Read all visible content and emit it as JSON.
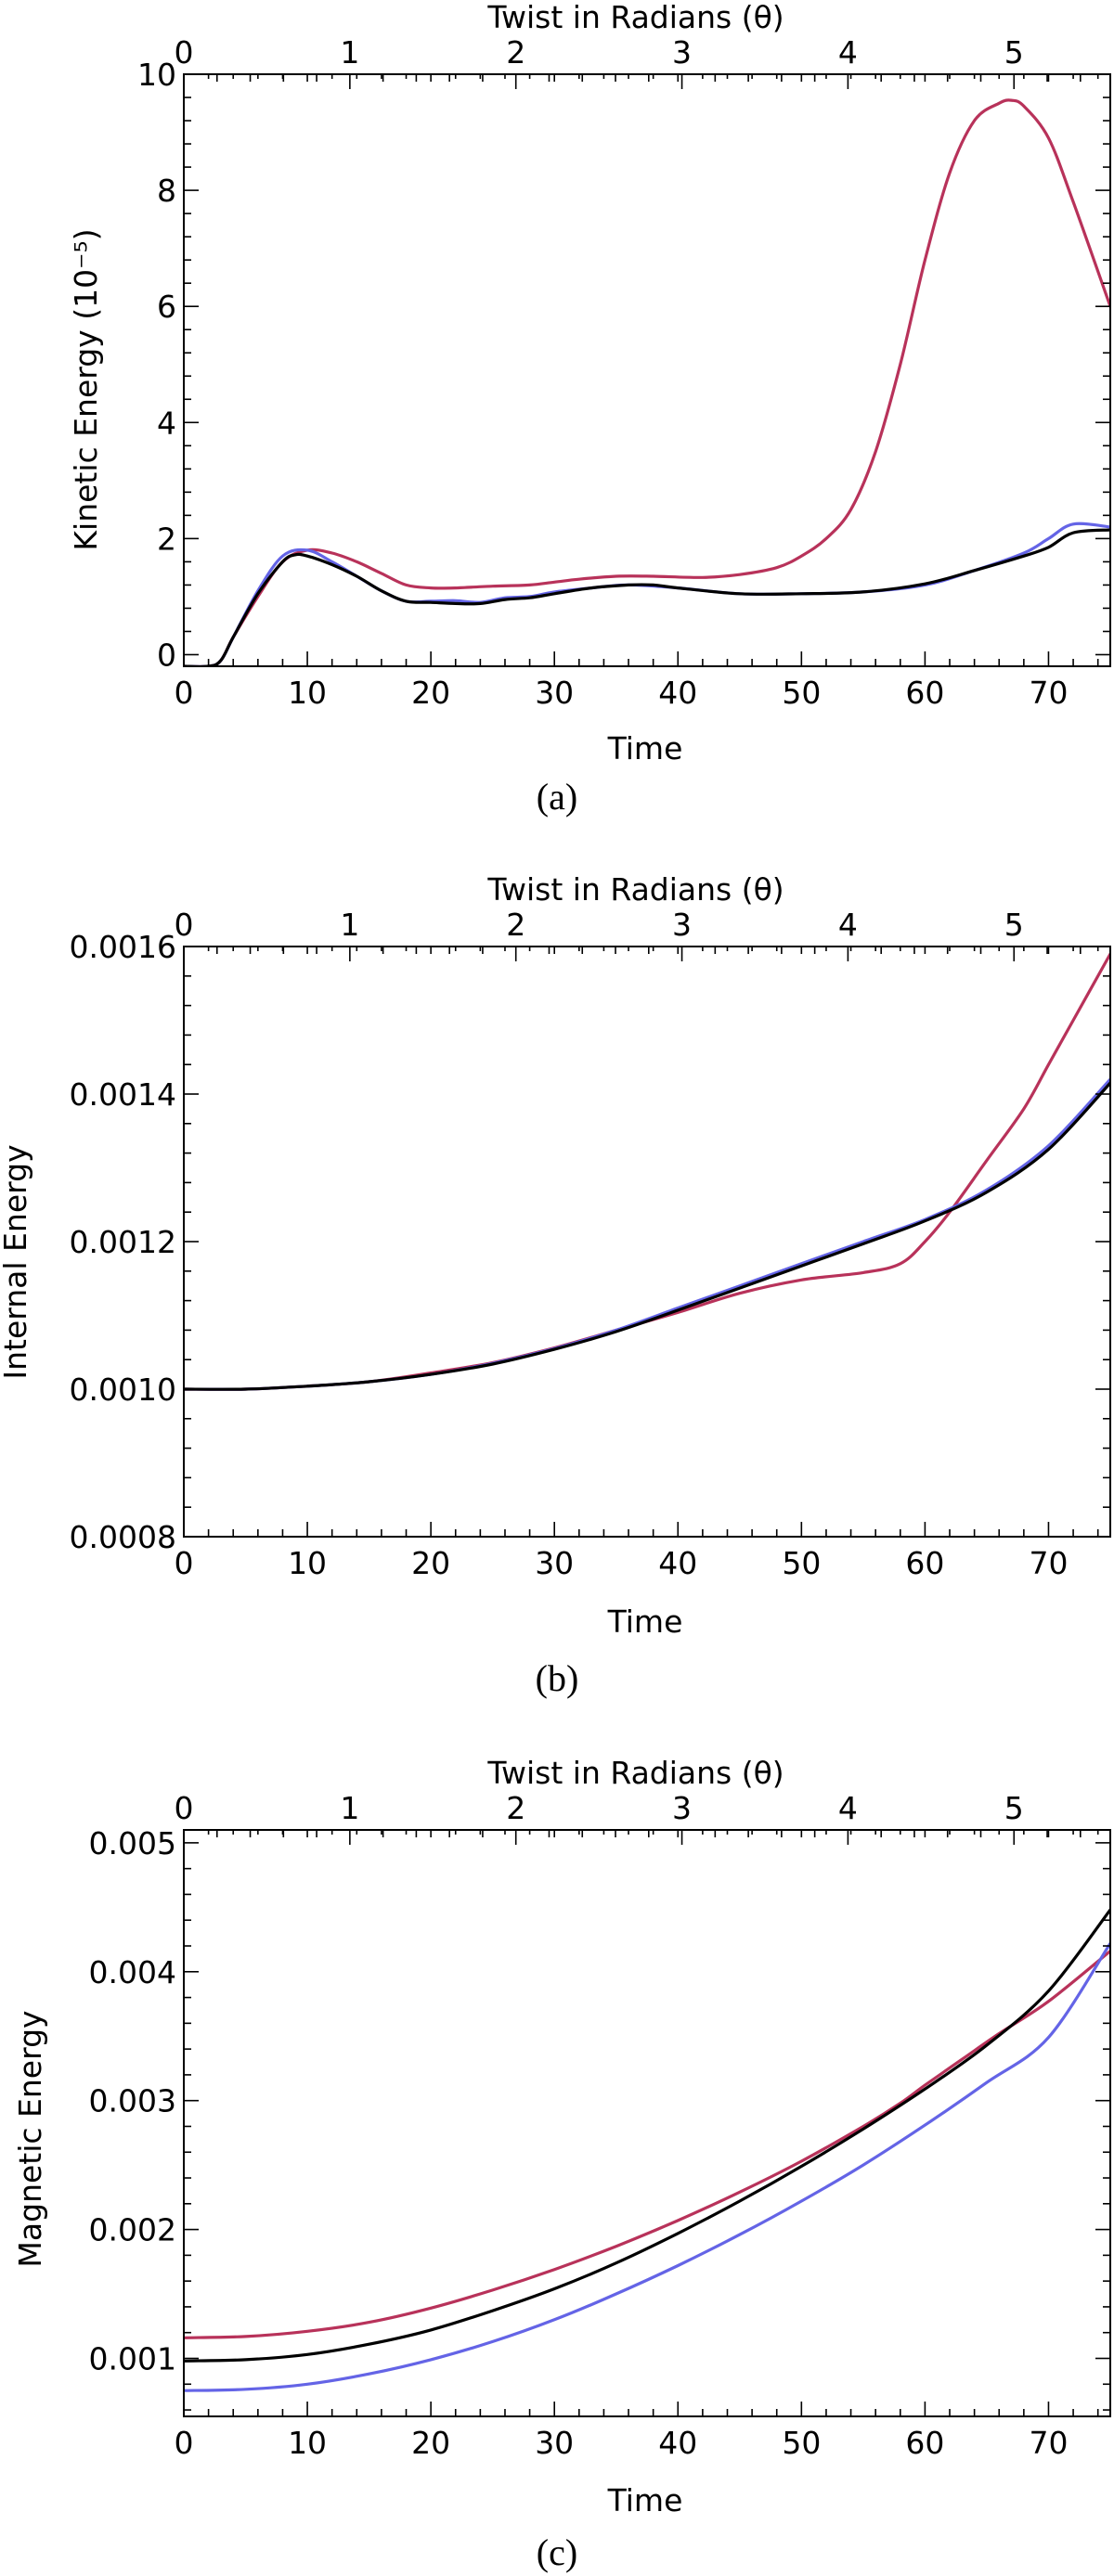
{
  "series_colors": {
    "red": "#B8325A",
    "blue": "#6464E6",
    "black": "#000000"
  },
  "chart_data": [
    {
      "type": "line",
      "panel_label": "(a)",
      "xlabel": "Time",
      "x2label": "Twist in Radians (θ)",
      "ylabel": "Kinetic Energy (10⁻⁵)",
      "xlim": [
        0,
        75
      ],
      "x2lim": [
        0,
        5.58
      ],
      "ylim": [
        -0.2,
        10
      ],
      "xticks": [
        0,
        10,
        20,
        30,
        40,
        50,
        60,
        70
      ],
      "x2ticks": [
        0,
        1,
        2,
        3,
        4,
        5
      ],
      "yticks": [
        {
          "v": 0,
          "label": "0"
        },
        {
          "v": 2,
          "label": "2"
        },
        {
          "v": 4,
          "label": "4"
        },
        {
          "v": 6,
          "label": "6"
        },
        {
          "v": 8,
          "label": "8"
        },
        {
          "v": 10,
          "label": "10"
        }
      ],
      "series": [
        {
          "name": "red",
          "color": "#B8325A",
          "x": [
            0,
            2,
            3,
            4,
            6,
            8,
            10,
            12,
            14,
            16,
            18,
            20,
            22,
            25,
            28,
            30,
            32,
            35,
            38,
            42,
            45,
            48,
            50,
            52,
            54,
            56,
            58,
            60,
            62,
            64,
            66,
            67,
            68,
            70,
            72,
            75
          ],
          "y": [
            -0.2,
            -0.2,
            -0.1,
            0.3,
            1.0,
            1.6,
            1.8,
            1.75,
            1.6,
            1.4,
            1.2,
            1.15,
            1.15,
            1.18,
            1.2,
            1.25,
            1.3,
            1.35,
            1.35,
            1.33,
            1.38,
            1.5,
            1.7,
            2.0,
            2.5,
            3.5,
            5.0,
            6.8,
            8.3,
            9.2,
            9.5,
            9.55,
            9.45,
            8.9,
            7.8,
            6.0
          ]
        },
        {
          "name": "blue",
          "color": "#6464E6",
          "x": [
            0,
            2,
            3,
            4,
            6,
            8,
            10,
            12,
            14,
            16,
            18,
            20,
            22,
            24,
            26,
            28,
            30,
            33,
            36,
            40,
            45,
            50,
            55,
            60,
            64,
            68,
            70,
            72,
            75
          ],
          "y": [
            -0.2,
            -0.2,
            -0.1,
            0.3,
            1.1,
            1.7,
            1.8,
            1.6,
            1.35,
            1.1,
            0.92,
            0.92,
            0.93,
            0.9,
            0.98,
            1.0,
            1.08,
            1.15,
            1.2,
            1.15,
            1.05,
            1.05,
            1.08,
            1.2,
            1.45,
            1.75,
            2.0,
            2.25,
            2.2
          ]
        },
        {
          "name": "black",
          "color": "#000000",
          "x": [
            0,
            2,
            3,
            4,
            6,
            8,
            9,
            10,
            12,
            14,
            16,
            18,
            20,
            22,
            24,
            26,
            28,
            30,
            33,
            36,
            38,
            40,
            45,
            50,
            55,
            60,
            64,
            68,
            70,
            72,
            75
          ],
          "y": [
            -0.2,
            -0.2,
            -0.1,
            0.3,
            1.05,
            1.6,
            1.72,
            1.7,
            1.55,
            1.35,
            1.1,
            0.92,
            0.9,
            0.88,
            0.88,
            0.95,
            0.98,
            1.05,
            1.15,
            1.2,
            1.2,
            1.15,
            1.05,
            1.05,
            1.08,
            1.22,
            1.45,
            1.7,
            1.85,
            2.1,
            2.15
          ]
        }
      ]
    },
    {
      "type": "line",
      "panel_label": "(b)",
      "xlabel": "Time",
      "x2label": "Twist in Radians (θ)",
      "ylabel": "Internal Energy",
      "xlim": [
        0,
        75
      ],
      "x2lim": [
        0,
        5.58
      ],
      "ylim": [
        0.0008,
        0.0016
      ],
      "xticks": [
        0,
        10,
        20,
        30,
        40,
        50,
        60,
        70
      ],
      "x2ticks": [
        0,
        1,
        2,
        3,
        4,
        5
      ],
      "yticks": [
        {
          "v": 0.0008,
          "label": "0.0008"
        },
        {
          "v": 0.001,
          "label": "0.0010"
        },
        {
          "v": 0.0012,
          "label": "0.0012"
        },
        {
          "v": 0.0014,
          "label": "0.0014"
        },
        {
          "v": 0.0016,
          "label": "0.0016"
        }
      ],
      "series": [
        {
          "name": "red",
          "color": "#B8325A",
          "x": [
            0,
            5,
            10,
            15,
            20,
            25,
            30,
            35,
            40,
            45,
            50,
            55,
            58,
            60,
            62,
            65,
            68,
            70,
            72,
            75
          ],
          "y": [
            0.001,
            0.001,
            0.001004,
            0.00101,
            0.001022,
            0.001036,
            0.001056,
            0.00108,
            0.001104,
            0.00113,
            0.001148,
            0.001158,
            0.00117,
            0.0012,
            0.00124,
            0.00131,
            0.00138,
            0.00144,
            0.0015,
            0.00159
          ]
        },
        {
          "name": "blue",
          "color": "#6464E6",
          "x": [
            0,
            5,
            10,
            15,
            20,
            25,
            30,
            35,
            40,
            45,
            50,
            55,
            60,
            65,
            70,
            75
          ],
          "y": [
            0.001,
            0.001,
            0.001004,
            0.00101,
            0.00102,
            0.001035,
            0.001055,
            0.00108,
            0.00111,
            0.00114,
            0.00117,
            0.0012,
            0.00123,
            0.00127,
            0.00133,
            0.00142
          ]
        },
        {
          "name": "black",
          "color": "#000000",
          "x": [
            0,
            5,
            10,
            15,
            20,
            25,
            30,
            35,
            40,
            45,
            50,
            55,
            60,
            65,
            70,
            75
          ],
          "y": [
            0.001,
            0.001,
            0.001004,
            0.00101,
            0.00102,
            0.001034,
            0.001054,
            0.001078,
            0.001107,
            0.001137,
            0.001167,
            0.001197,
            0.001228,
            0.001267,
            0.001325,
            0.001415
          ]
        }
      ]
    },
    {
      "type": "line",
      "panel_label": "(c)",
      "xlabel": "Time",
      "x2label": "Twist in Radians (θ)",
      "ylabel": "Magnetic Energy",
      "xlim": [
        0,
        75
      ],
      "x2lim": [
        0,
        5.58
      ],
      "ylim": [
        0.00055,
        0.0051
      ],
      "xticks": [
        0,
        10,
        20,
        30,
        40,
        50,
        60,
        70
      ],
      "x2ticks": [
        0,
        1,
        2,
        3,
        4,
        5
      ],
      "yticks": [
        {
          "v": 0.001,
          "label": "0.001"
        },
        {
          "v": 0.002,
          "label": "0.002"
        },
        {
          "v": 0.003,
          "label": "0.003"
        },
        {
          "v": 0.004,
          "label": "0.004"
        },
        {
          "v": 0.005,
          "label": "0.005"
        }
      ],
      "series": [
        {
          "name": "red",
          "color": "#B8325A",
          "x": [
            0,
            5,
            10,
            15,
            20,
            25,
            30,
            35,
            40,
            45,
            50,
            55,
            58,
            60,
            63,
            66,
            70,
            75
          ],
          "y": [
            0.00116,
            0.00117,
            0.00121,
            0.00128,
            0.00139,
            0.00153,
            0.00169,
            0.00187,
            0.00207,
            0.00229,
            0.00253,
            0.0028,
            0.00298,
            0.00312,
            0.00332,
            0.00352,
            0.00377,
            0.00416
          ]
        },
        {
          "name": "blue",
          "color": "#6464E6",
          "x": [
            0,
            5,
            10,
            15,
            20,
            25,
            30,
            35,
            40,
            45,
            50,
            55,
            60,
            65,
            70,
            75
          ],
          "y": [
            0.00075,
            0.00076,
            0.0008,
            0.00088,
            0.00099,
            0.00113,
            0.0013,
            0.0015,
            0.00172,
            0.00196,
            0.00222,
            0.0025,
            0.00281,
            0.00314,
            0.00349,
            0.00422
          ]
        },
        {
          "name": "black",
          "color": "#000000",
          "x": [
            0,
            5,
            10,
            15,
            20,
            25,
            30,
            35,
            40,
            45,
            50,
            55,
            60,
            65,
            70,
            75
          ],
          "y": [
            0.00098,
            0.00099,
            0.00103,
            0.00111,
            0.00122,
            0.00137,
            0.00154,
            0.00174,
            0.00197,
            0.00222,
            0.00249,
            0.00278,
            0.00309,
            0.00343,
            0.00385,
            0.00448
          ]
        }
      ]
    }
  ]
}
